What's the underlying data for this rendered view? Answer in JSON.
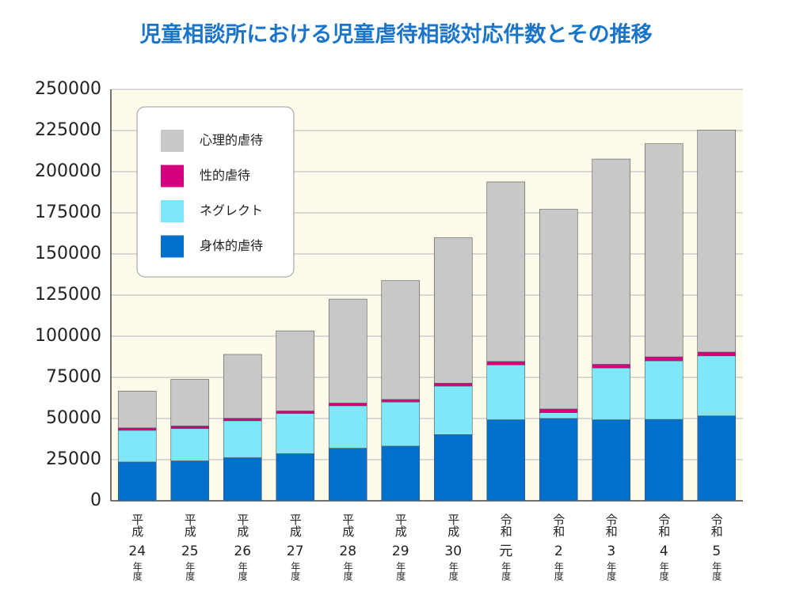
{
  "chart_data": {
    "type": "bar",
    "stacked": true,
    "title": "児童相談所における児童虐待相談対応件数とその推移",
    "categories": [
      [
        "平成",
        "24",
        "年度"
      ],
      [
        "平成",
        "25",
        "年度"
      ],
      [
        "平成",
        "26",
        "年度"
      ],
      [
        "平成",
        "27",
        "年度"
      ],
      [
        "平成",
        "28",
        "年度"
      ],
      [
        "平成",
        "29",
        "年度"
      ],
      [
        "平成",
        "30",
        "年度"
      ],
      [
        "令和",
        "元",
        "年度"
      ],
      [
        "令和",
        "2",
        "年度"
      ],
      [
        "令和",
        "3",
        "年度"
      ],
      [
        "令和",
        "4",
        "年度"
      ],
      [
        "令和",
        "5",
        "年度"
      ]
    ],
    "series": [
      {
        "name": "身体的虐待",
        "color": "#0070cc",
        "values": [
          23579,
          24245,
          26181,
          28621,
          31925,
          33223,
          40238,
          49240,
          50035,
          49241,
          49464,
          51623
        ]
      },
      {
        "name": "ネグレクト",
        "color": "#7ee8fa",
        "values": [
          19250,
          19627,
          22455,
          24444,
          25842,
          26821,
          29479,
          33345,
          3500,
          31448,
          35556,
          36465
        ]
      },
      {
        "name": "性的虐待",
        "color": "#d6007f",
        "values": [
          1449,
          1582,
          1520,
          1521,
          1622,
          1537,
          1730,
          2077,
          2245,
          2247,
          2451,
          2284
        ]
      },
      {
        "name": "心理的虐待",
        "color": "#c8c8c8",
        "values": [
          22423,
          28348,
          38775,
          48700,
          63186,
          72197,
          88391,
          109118,
          121334,
          124724,
          129484,
          134948
        ]
      }
    ],
    "ylim": [
      0,
      250000
    ],
    "yticks": [
      0,
      25000,
      50000,
      75000,
      100000,
      125000,
      150000,
      175000,
      200000,
      225000,
      250000
    ],
    "grid": true
  }
}
